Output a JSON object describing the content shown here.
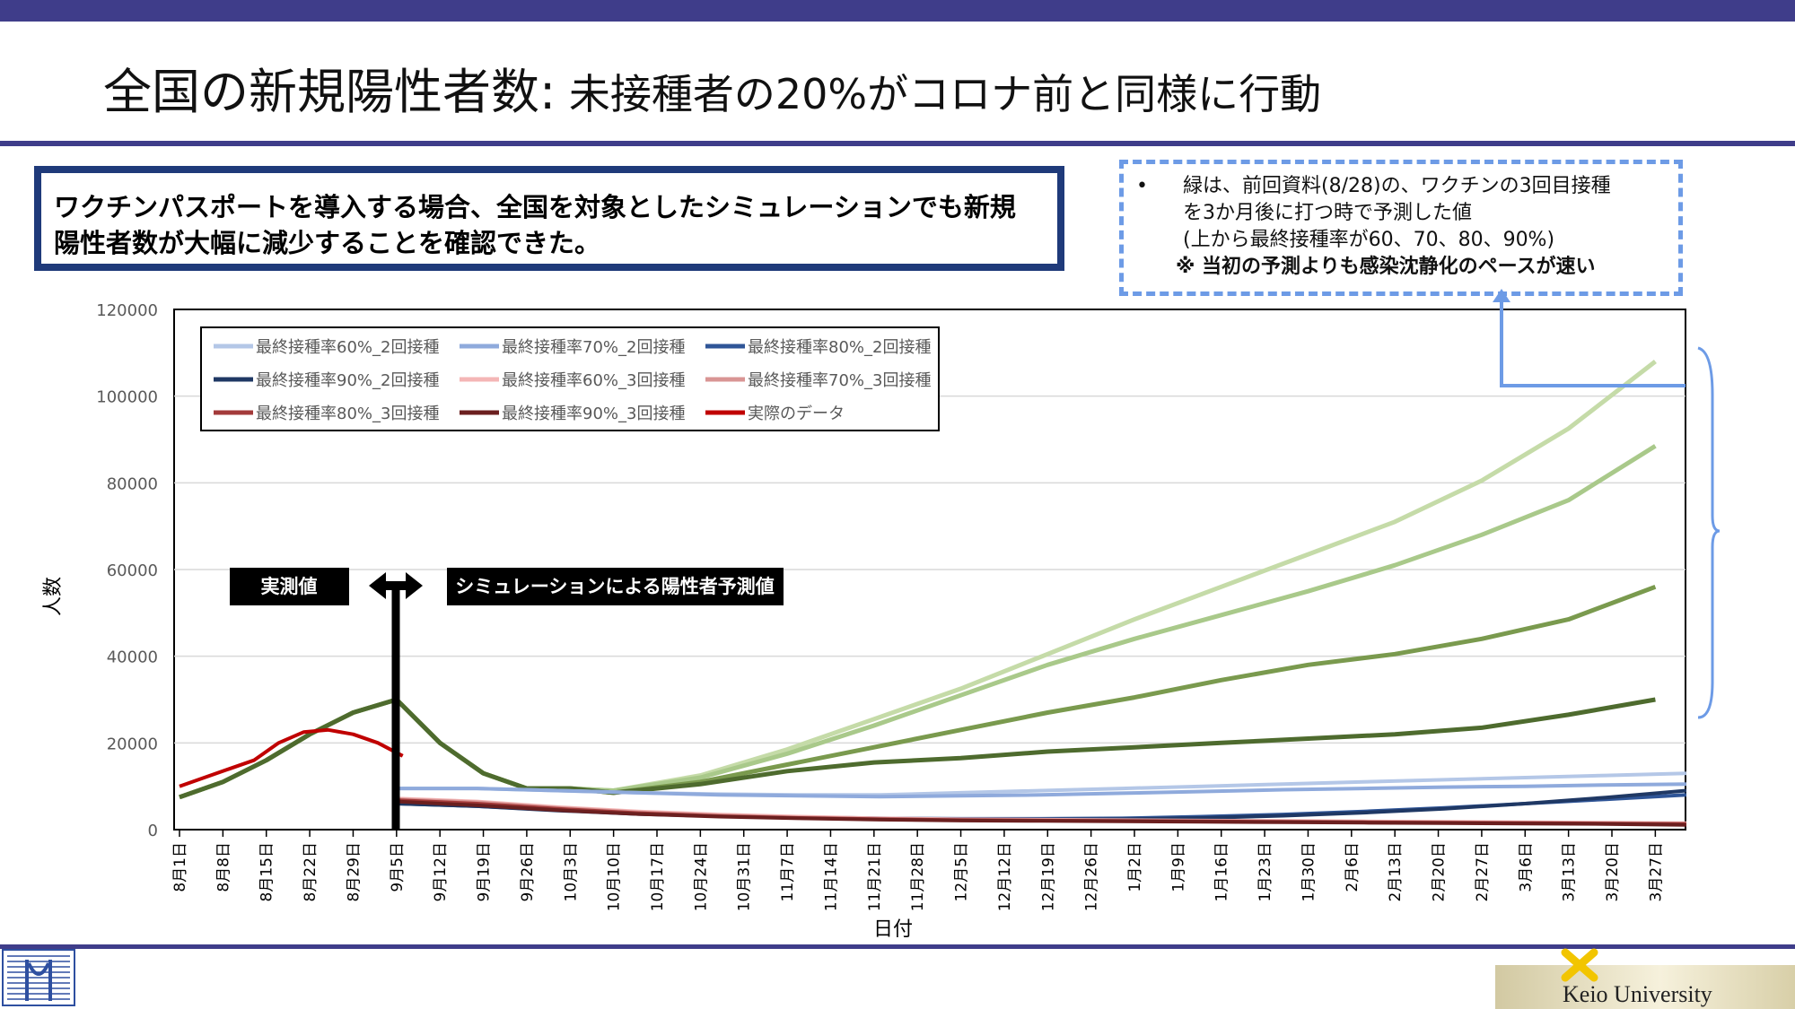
{
  "slide": {
    "title_main": "全国の新規陽性者数:",
    "title_sub": " 未接種者の20%がコロナ前と同様に行動",
    "summary": "ワクチンパスポートを導入する場合、全国を対象としたシミュレーションでも新規陽性者数が大幅に減少することを確認できた。",
    "note_bullet": "•",
    "note_lines": [
      "緑は、前回資料(8/28)の、ワクチンの3回目接種",
      "を3か月後に打つ時で予測した値",
      "(上から最終接種率が60、70、80、90%)"
    ],
    "note_emphasis": "※ 当初の予測よりも感染沈静化のペースが速い",
    "footer_right": "Keio University"
  },
  "colors": {
    "accent_bar": "#3f3d8a",
    "summary_border": "#1f3a7a",
    "note_border": "#6d9be6"
  },
  "chart_data": {
    "type": "line",
    "xlabel": "日付",
    "ylabel": "人数",
    "ylim": [
      0,
      120000
    ],
    "yticks": [
      0,
      20000,
      40000,
      60000,
      80000,
      100000,
      120000
    ],
    "grid": true,
    "legend_position": "top-left",
    "x_ticks": [
      "8月1日",
      "8月8日",
      "8月15日",
      "8月22日",
      "8月29日",
      "9月5日",
      "9月12日",
      "9月19日",
      "9月26日",
      "10月3日",
      "10月10日",
      "10月17日",
      "10月24日",
      "10月31日",
      "11月7日",
      "11月14日",
      "11月21日",
      "11月28日",
      "12月5日",
      "12月12日",
      "12月19日",
      "12月26日",
      "1月2日",
      "1月9日",
      "1月16日",
      "1月23日",
      "1月30日",
      "2月6日",
      "2月13日",
      "2月20日",
      "2月27日",
      "3月6日",
      "3月13日",
      "3月20日",
      "3月27日"
    ],
    "label_observed": "実測値",
    "label_simulation": "シミュレーションによる陽性者予測値",
    "series": [
      {
        "name": "最終接種率60%_2回接種",
        "color": "#b4c7e7",
        "values": [
          9500,
          9500,
          9000,
          8500,
          8200,
          8000,
          8000,
          8500,
          9000,
          9500,
          10000,
          10500,
          11000,
          11500,
          12000,
          12500,
          13000
        ]
      },
      {
        "name": "最終接種率70%_2回接種",
        "color": "#8faadc",
        "values": [
          9500,
          9500,
          9000,
          8500,
          8000,
          7800,
          7600,
          7800,
          8000,
          8400,
          8800,
          9200,
          9500,
          9800,
          10000,
          10300,
          10500
        ]
      },
      {
        "name": "最終接種率80%_2回接種",
        "color": "#2f5597",
        "values": [
          6000,
          5400,
          4500,
          3800,
          3300,
          2900,
          2600,
          2500,
          2500,
          2600,
          3000,
          3500,
          4200,
          5000,
          6000,
          7000,
          8000
        ]
      },
      {
        "name": "最終接種率90%_2回接種",
        "color": "#1f3864",
        "values": [
          6000,
          5400,
          4400,
          3600,
          3100,
          2700,
          2400,
          2300,
          2300,
          2400,
          2700,
          3200,
          3900,
          4800,
          6000,
          7400,
          9000
        ]
      },
      {
        "name": "最終接種率60%_3回接種",
        "color": "#f4b6b6",
        "values": [
          7200,
          6500,
          5200,
          4200,
          3500,
          3000,
          2600,
          2400,
          2300,
          2200,
          2100,
          2000,
          1900,
          1800,
          1700,
          1600,
          1500
        ]
      },
      {
        "name": "最終接種率70%_3回接種",
        "color": "#d99594",
        "values": [
          7000,
          6300,
          5000,
          4000,
          3300,
          2800,
          2500,
          2300,
          2200,
          2100,
          2000,
          1900,
          1800,
          1700,
          1600,
          1500,
          1400
        ]
      },
      {
        "name": "最終接種率80%_3回接種",
        "color": "#a33a3a",
        "values": [
          6800,
          6000,
          4800,
          3800,
          3100,
          2700,
          2400,
          2200,
          2100,
          2000,
          1900,
          1800,
          1700,
          1600,
          1500,
          1400,
          1300
        ]
      },
      {
        "name": "最終接種率90%_3回接種",
        "color": "#6b1f1f",
        "values": [
          6500,
          5600,
          4500,
          3600,
          3000,
          2600,
          2300,
          2100,
          2000,
          1900,
          1800,
          1700,
          1600,
          1500,
          1400,
          1300,
          1100
        ]
      },
      {
        "name": "実際のデータ",
        "color": "#c00000",
        "values": [
          10000,
          12000,
          14000,
          16000,
          20000,
          22500,
          23000,
          22000,
          20000,
          17000
        ]
      }
    ],
    "reference_series": [
      {
        "color": "#c5dba8",
        "x_days": [
          0,
          7,
          14,
          21,
          28,
          35,
          42,
          49,
          56,
          63,
          70,
          84,
          98,
          112,
          126,
          140,
          154,
          168,
          182,
          196,
          210,
          224,
          238
        ],
        "values": [
          7500,
          11000,
          16000,
          22000,
          27000,
          30000,
          20000,
          13000,
          9500,
          9500,
          9000,
          12500,
          18500,
          25500,
          32500,
          40500,
          48500,
          56000,
          63500,
          71000,
          80500,
          92500,
          108000
        ]
      },
      {
        "color": "#a9c98a",
        "x_days": [
          0,
          7,
          14,
          21,
          28,
          35,
          42,
          49,
          56,
          63,
          70,
          84,
          98,
          112,
          126,
          140,
          154,
          168,
          182,
          196,
          210,
          224,
          238
        ],
        "values": [
          7500,
          11000,
          16000,
          22000,
          27000,
          30000,
          20000,
          13000,
          9500,
          9500,
          9000,
          12000,
          17500,
          24000,
          31000,
          38000,
          44000,
          49500,
          55000,
          61000,
          68000,
          76000,
          88500
        ]
      },
      {
        "color": "#7a9a4e",
        "x_days": [
          0,
          7,
          14,
          21,
          28,
          35,
          42,
          49,
          56,
          63,
          70,
          84,
          98,
          112,
          126,
          140,
          154,
          168,
          182,
          196,
          210,
          224,
          238
        ],
        "values": [
          7500,
          11000,
          16000,
          22000,
          27000,
          30000,
          20000,
          13000,
          9500,
          9500,
          8500,
          11000,
          15000,
          19000,
          23000,
          27000,
          30500,
          34500,
          38000,
          40500,
          44000,
          48500,
          56000
        ]
      },
      {
        "color": "#4e6b2e",
        "x_days": [
          0,
          7,
          14,
          21,
          28,
          35,
          42,
          49,
          56,
          63,
          70,
          84,
          98,
          112,
          126,
          140,
          154,
          168,
          182,
          196,
          210,
          224,
          238
        ],
        "values": [
          7500,
          11000,
          16000,
          22000,
          27000,
          30000,
          20000,
          13000,
          9500,
          9500,
          8500,
          10500,
          13500,
          15500,
          16500,
          18000,
          19000,
          20000,
          21000,
          22000,
          23500,
          26500,
          30000
        ]
      }
    ]
  }
}
